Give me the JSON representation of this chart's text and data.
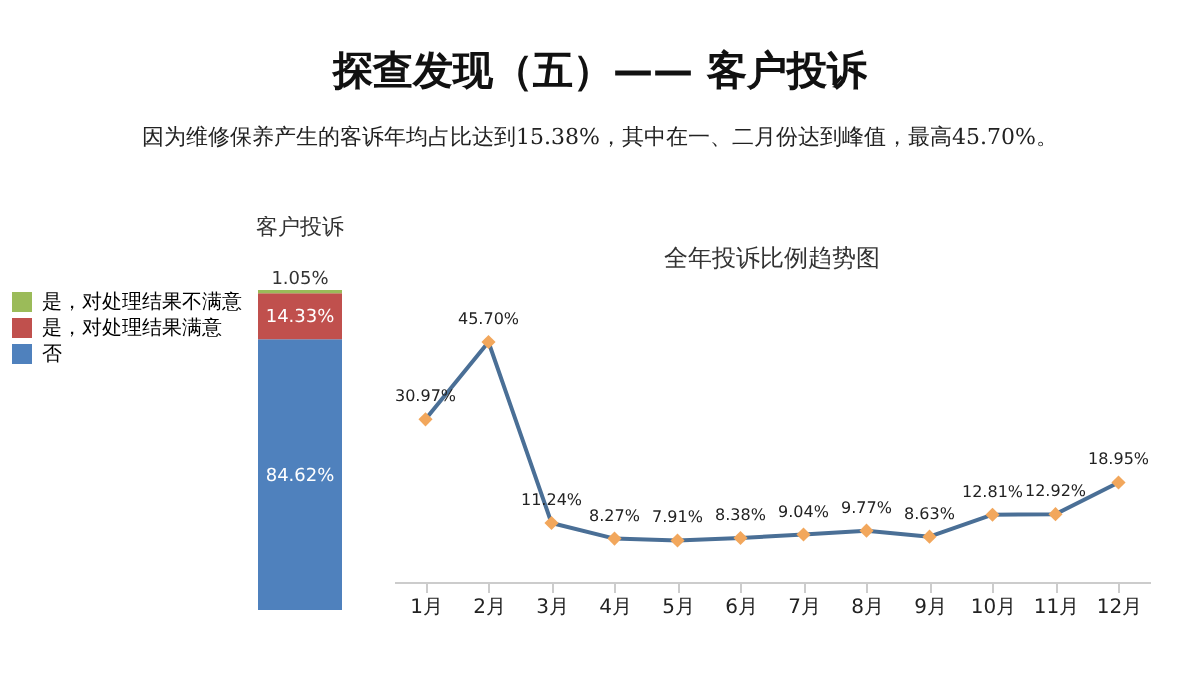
{
  "chart_data": [
    {
      "type": "other",
      "title": "探查发现（五）—— 客户投诉",
      "subtitle": "因为维修保养产生的客诉年均占比达到15.38%，其中在一、二月份达到峰值，最高45.70%。"
    },
    {
      "type": "bar",
      "title": "客户投诉",
      "stacked": true,
      "categories": [
        null
      ],
      "legend": "left",
      "series": [
        {
          "name": "否",
          "color": "#4f81bd",
          "values": [
            84.62
          ],
          "value_labels": [
            "84.62%"
          ]
        },
        {
          "name": "是，对处理结果满意",
          "color": "#c0504d",
          "values": [
            14.33
          ],
          "value_labels": [
            "14.33%"
          ]
        },
        {
          "name": "是，对处理结果不满意",
          "color": "#9bbb59",
          "values": [
            1.05
          ],
          "value_labels": [
            "1.05%"
          ]
        }
      ]
    },
    {
      "type": "line",
      "title": "全年投诉比例趋势图",
      "categories": [
        "1月",
        "2月",
        "3月",
        "4月",
        "5月",
        "6月",
        "7月",
        "8月",
        "9月",
        "10月",
        "11月",
        "12月"
      ],
      "marker": "diamond",
      "grid": false,
      "series": [
        {
          "color": "#4a6f96",
          "colors": [
            "#f2a75c",
            "#f2a75c",
            "#f2a75c",
            "#f2a75c",
            "#f2a75c",
            "#f2a75c",
            "#f2a75c",
            "#f2a75c",
            "#f2a75c",
            "#f2a75c",
            "#f2a75c",
            "#f2a75c"
          ],
          "values": [
            30.97,
            45.7,
            11.24,
            8.27,
            7.91,
            8.38,
            9.04,
            9.77,
            8.63,
            12.81,
            12.92,
            18.95
          ],
          "value_labels": [
            "30.97%",
            "45.70%",
            "11.24%",
            "8.27%",
            "7.91%",
            "8.38%",
            "9.04%",
            "9.77%",
            "8.63%",
            "12.81%",
            "12.92%",
            "18.95%"
          ]
        }
      ]
    }
  ]
}
